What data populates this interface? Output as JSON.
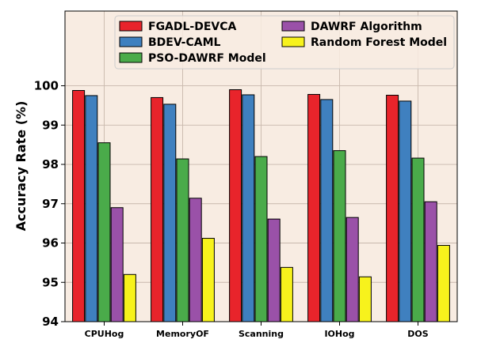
{
  "chart_data": {
    "type": "bar",
    "title": "",
    "xlabel": "",
    "ylabel": "Accuracy Rate (%)",
    "ylim": [
      94,
      101.9
    ],
    "yticks": [
      94,
      95,
      96,
      97,
      98,
      99,
      100
    ],
    "ytick_labels": [
      "94",
      "95",
      "96",
      "97",
      "98",
      "99",
      "100"
    ],
    "grid": true,
    "legend_position": "top",
    "categories": [
      "CPUHog",
      "MemoryOF",
      "Scanning",
      "IOHog",
      "DOS"
    ],
    "series": [
      {
        "name": "FGADL-DEVCA",
        "color": "#e8242b",
        "values": [
          99.88,
          99.7,
          99.9,
          99.78,
          99.76
        ]
      },
      {
        "name": "BDEV-CAML",
        "color": "#3f80bf",
        "values": [
          99.75,
          99.53,
          99.77,
          99.65,
          99.61
        ]
      },
      {
        "name": "PSO-DAWRF Model",
        "color": "#4aab4a",
        "values": [
          98.55,
          98.14,
          98.2,
          98.35,
          98.16
        ]
      },
      {
        "name": "DAWRF Algorithm",
        "color": "#9a51a8",
        "values": [
          96.9,
          97.14,
          96.61,
          96.65,
          97.05
        ]
      },
      {
        "name": "Random Forest Model",
        "color": "#f7f21c",
        "values": [
          95.2,
          96.12,
          95.38,
          95.14,
          95.94
        ]
      }
    ],
    "colors": {
      "plot_background": "#f8ece2",
      "grid": "#c8b8ac",
      "edge": "#000000"
    }
  }
}
